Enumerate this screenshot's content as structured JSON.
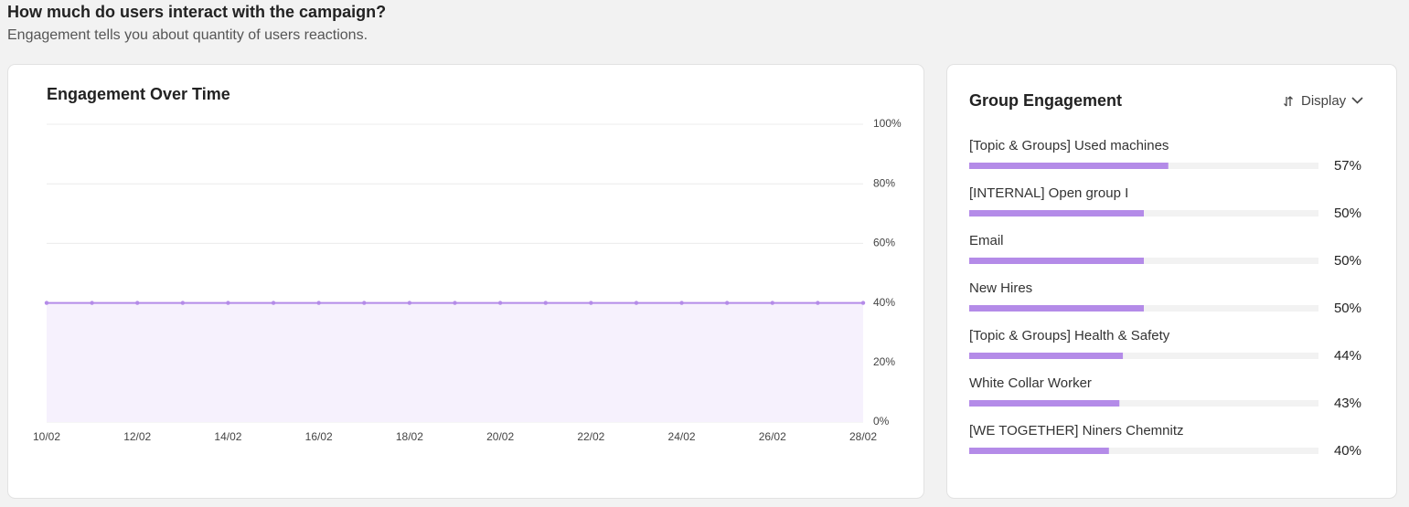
{
  "header": {
    "title": "How much do users interact with the campaign?",
    "subtitle": "Engagement tells you about quantity of users reactions."
  },
  "controls": {
    "display": "Display"
  },
  "chart_data": [
    {
      "type": "area",
      "title": "Engagement Over Time",
      "categories": [
        "10/02",
        null,
        "12/02",
        null,
        "14/02",
        null,
        "16/02",
        null,
        "18/02",
        null,
        "20/02",
        null,
        "22/02",
        null,
        "24/02",
        null,
        "26/02",
        null,
        "28/02"
      ],
      "values": [
        40,
        40,
        40,
        40,
        40,
        40,
        40,
        40,
        40,
        40,
        40,
        40,
        40,
        40,
        40,
        40,
        40,
        40,
        40
      ],
      "color": "#b48be8",
      "fill": "#f6f1fd",
      "ylim": [
        0,
        100
      ],
      "yticks": [
        {
          "value": 0,
          "label": "0%"
        },
        {
          "value": 20,
          "label": "20%"
        },
        {
          "value": 40,
          "label": "40%"
        },
        {
          "value": 60,
          "label": "60%"
        },
        {
          "value": 80,
          "label": "80%"
        },
        {
          "value": 100,
          "label": "100%"
        }
      ],
      "grid": true
    },
    {
      "type": "hbar",
      "title": "Group Engagement",
      "categories": [
        "[Topic & Groups] Used machines",
        "[INTERNAL] Open group I",
        "Email",
        "New Hires",
        "[Topic & Groups] Health & Safety",
        "White Collar Worker",
        "[WE TOGETHER] Niners Chemnitz"
      ],
      "values": [
        57,
        50,
        50,
        50,
        44,
        43,
        40
      ],
      "value_labels": [
        "57%",
        "50%",
        "50%",
        "50%",
        "44%",
        "43%",
        "40%"
      ],
      "xlim": [
        0,
        100
      ],
      "color": "#b48be8",
      "track_color": "#f2f2f2"
    }
  ]
}
